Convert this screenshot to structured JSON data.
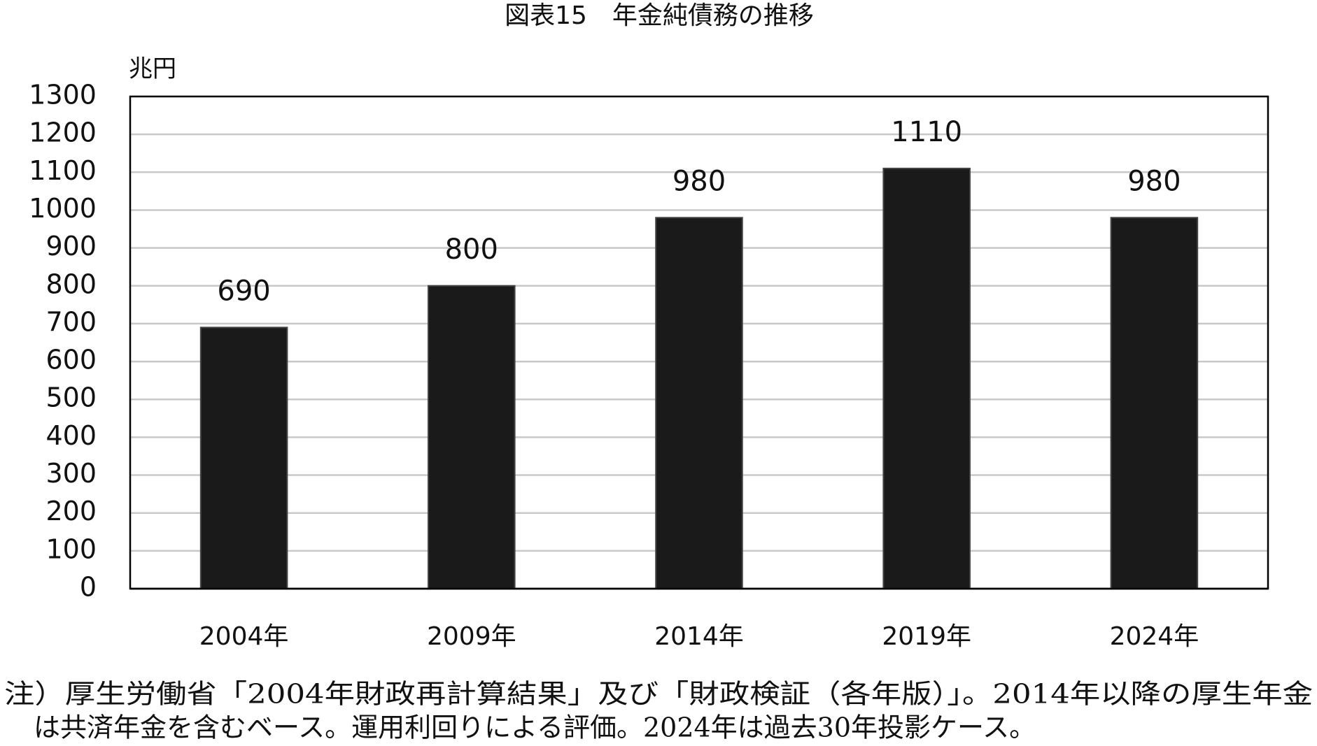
{
  "chart_data": {
    "type": "bar",
    "title": "図表15　年金純債務の推移",
    "y_label": "兆円",
    "categories": [
      "2004年",
      "2009年",
      "2014年",
      "2019年",
      "2024年"
    ],
    "values": [
      690,
      800,
      980,
      1110,
      980
    ],
    "color": "#1a1a1a",
    "ylim": [
      0,
      1300
    ],
    "yticks": [
      0,
      100,
      200,
      300,
      400,
      500,
      600,
      700,
      800,
      900,
      1000,
      1100,
      1200,
      1300
    ],
    "grid": true,
    "notes": [
      "注）厚生労働省「2004年財政再計算結果」及び「財政検証（各年版）」。2014年以降の厚生年金",
      "は共済年金を含むベース。運用利回りによる評価。2024年は過去30年投影ケース。"
    ]
  }
}
